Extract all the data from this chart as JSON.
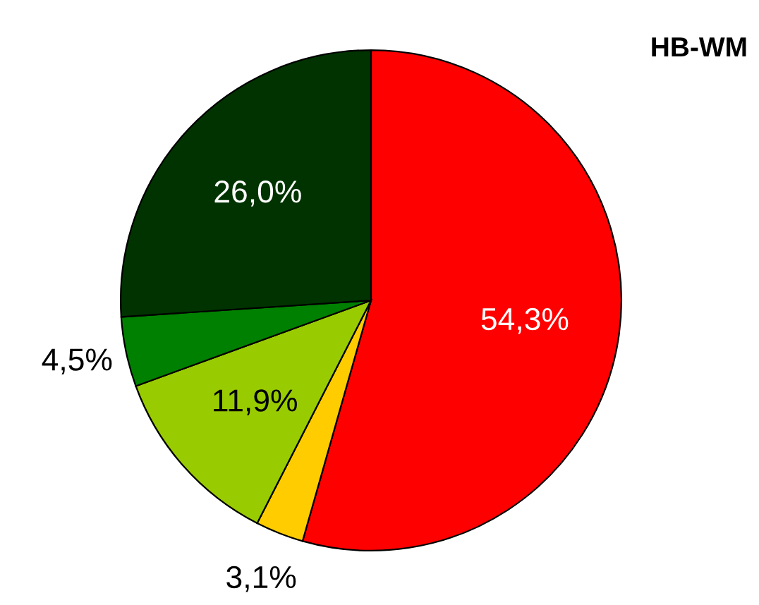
{
  "chart_data": {
    "type": "pie",
    "title": "HB-WM",
    "categories": [
      null,
      null,
      null,
      null,
      null
    ],
    "values": [
      54.3,
      3.1,
      11.9,
      4.5,
      26.0
    ],
    "value_labels": [
      "54,3%",
      "3,1%",
      "11,9%",
      "4,5%",
      "26,0%"
    ],
    "colors": [
      "#ff0000",
      "#ffcc00",
      "#99cc00",
      "#008000",
      "#003300"
    ],
    "legend": false
  }
}
